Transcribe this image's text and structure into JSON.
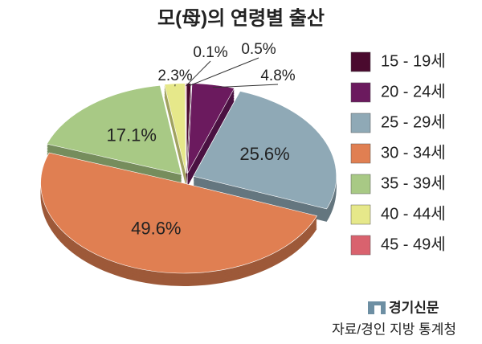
{
  "chart_data": {
    "type": "pie",
    "title": "모(母)의 연령별 출산",
    "categories": [
      "15 - 19세",
      "20 - 24세",
      "25 - 29세",
      "30 - 34세",
      "35 - 39세",
      "40 - 44세",
      "45 - 49세"
    ],
    "values": [
      0.5,
      4.8,
      25.6,
      49.6,
      17.1,
      2.3,
      0.1
    ],
    "value_labels": [
      "0.5%",
      "4.8%",
      "25.6%",
      "49.6%",
      "17.1%",
      "2.3%",
      "0.1%"
    ],
    "colors": [
      "#4a0a2e",
      "#6b1a5e",
      "#8fa9b6",
      "#e07f52",
      "#a8c985",
      "#e6e88a",
      "#d9626e"
    ],
    "legend": "right"
  },
  "footer": {
    "logo": "경기신문",
    "source": "자료/경인 지방 통계청"
  }
}
